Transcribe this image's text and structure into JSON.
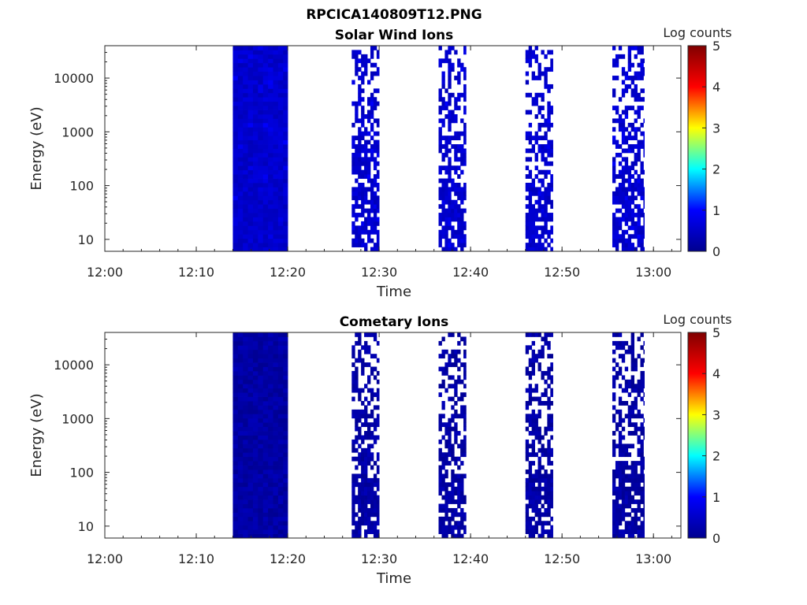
{
  "figure": {
    "title": "RPCICA140809T12.PNG"
  },
  "colormap": {
    "stops": [
      "#00008f",
      "#0000ff",
      "#00ffff",
      "#ffff00",
      "#ff0000",
      "#800000"
    ]
  },
  "chart_data": [
    {
      "type": "heatmap",
      "title": "Solar Wind Ions",
      "xlabel": "Time",
      "ylabel": "Energy (eV)",
      "x_ticks": [
        "12:00",
        "12:10",
        "12:20",
        "12:30",
        "12:40",
        "12:50",
        "13:00"
      ],
      "xlim": [
        "12:00",
        "13:03"
      ],
      "y_scale": "log",
      "y_ticks": [
        "10",
        "100",
        "1000",
        "10000"
      ],
      "ylim": [
        6,
        40000
      ],
      "colorbar": {
        "label": "Log counts",
        "ticks": [
          "0",
          "1",
          "2",
          "3",
          "4",
          "5"
        ],
        "range": [
          0,
          5
        ]
      },
      "data_intervals": [
        {
          "start": "12:14",
          "end": "12:20",
          "style": "dense",
          "level": 0.55
        },
        {
          "start": "12:27",
          "end": "12:30",
          "style": "sparse",
          "level": 0.6
        },
        {
          "start": "12:36.5",
          "end": "12:39.5",
          "style": "sparse",
          "level": 0.6
        },
        {
          "start": "12:46",
          "end": "12:49",
          "style": "sparse",
          "level": 0.6
        },
        {
          "start": "12:55.5",
          "end": "12:59",
          "style": "sparse",
          "level": 0.6
        }
      ]
    },
    {
      "type": "heatmap",
      "title": "Cometary Ions",
      "xlabel": "Time",
      "ylabel": "Energy (eV)",
      "x_ticks": [
        "12:00",
        "12:10",
        "12:20",
        "12:30",
        "12:40",
        "12:50",
        "13:00"
      ],
      "xlim": [
        "12:00",
        "13:03"
      ],
      "y_scale": "log",
      "y_ticks": [
        "10",
        "100",
        "1000",
        "10000"
      ],
      "ylim": [
        6,
        40000
      ],
      "colorbar": {
        "label": "Log counts",
        "ticks": [
          "0",
          "1",
          "2",
          "3",
          "4",
          "5"
        ],
        "range": [
          0,
          5
        ]
      },
      "data_intervals": [
        {
          "start": "12:14",
          "end": "12:20",
          "style": "dense",
          "level": 0.2
        },
        {
          "start": "12:27",
          "end": "12:30",
          "style": "sparse",
          "level": 0.3
        },
        {
          "start": "12:36.5",
          "end": "12:39.5",
          "style": "sparse",
          "level": 0.3
        },
        {
          "start": "12:46",
          "end": "12:49",
          "style": "sparse",
          "level": 0.3
        },
        {
          "start": "12:55.5",
          "end": "12:59",
          "style": "sparse",
          "level": 0.3
        }
      ]
    }
  ]
}
